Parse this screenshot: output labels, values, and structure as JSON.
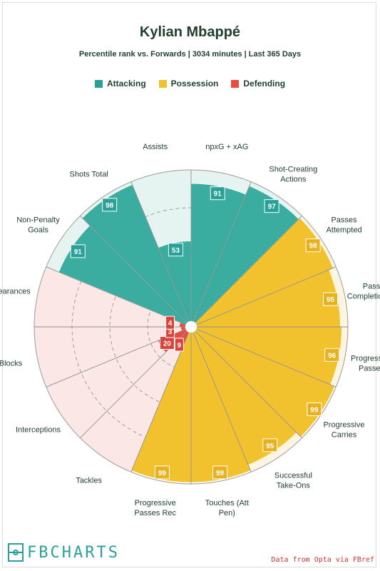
{
  "header": {
    "title": "Kylian Mbappé",
    "subtitle": "Percentile rank vs. Forwards | 3034 minutes | Last 365 Days"
  },
  "legend": [
    {
      "label": "Attacking",
      "color": "#2aa198"
    },
    {
      "label": "Possession",
      "color": "#f2c12e"
    },
    {
      "label": "Defending",
      "color": "#e74c3c"
    }
  ],
  "chart_data": {
    "type": "radar-pizza",
    "range": [
      0,
      100
    ],
    "stats": [
      {
        "label": "npxG + xAG",
        "value": 91,
        "group": "Attacking"
      },
      {
        "label": "Shot-Creating Actions",
        "value": 97,
        "group": "Attacking"
      },
      {
        "label": "Passes Attempted",
        "value": 98,
        "group": "Possession"
      },
      {
        "label": "Pass Completion %",
        "value": 95,
        "group": "Possession"
      },
      {
        "label": "Progressive Passes",
        "value": 96,
        "group": "Possession"
      },
      {
        "label": "Progressive Carries",
        "value": 99,
        "group": "Possession"
      },
      {
        "label": "Successful Take-Ons",
        "value": 95,
        "group": "Possession"
      },
      {
        "label": "Touches (Att Pen)",
        "value": 99,
        "group": "Possession"
      },
      {
        "label": "Progressive Passes Rec",
        "value": 99,
        "group": "Possession"
      },
      {
        "label": "Tackles",
        "value": 9,
        "group": "Defending"
      },
      {
        "label": "Interceptions",
        "value": 20,
        "group": "Defending"
      },
      {
        "label": "Blocks",
        "value": 3,
        "group": "Defending"
      },
      {
        "label": "Clearances",
        "value": 4,
        "group": "Defending"
      },
      {
        "label": "Non-Penalty Goals",
        "value": 91,
        "group": "Attacking"
      },
      {
        "label": "Shots Total",
        "value": 98,
        "group": "Attacking"
      },
      {
        "label": "Assists",
        "value": 53,
        "group": "Attacking"
      }
    ],
    "group_colors": {
      "Attacking": {
        "fill": "#3aada0",
        "bg": "#e6f4f1",
        "label_bg": "#2aa198"
      },
      "Possession": {
        "fill": "#f2c12e",
        "bg": "#fdf5e2",
        "label_bg": "#e7b21d"
      },
      "Defending": {
        "fill": "#e74c3c",
        "bg": "#fbe8e6",
        "label_bg": "#d9443a"
      }
    },
    "gridlines": "dashed"
  },
  "footer": {
    "logo": "FBCHARTS",
    "source": "Data from Opta via FBref"
  }
}
